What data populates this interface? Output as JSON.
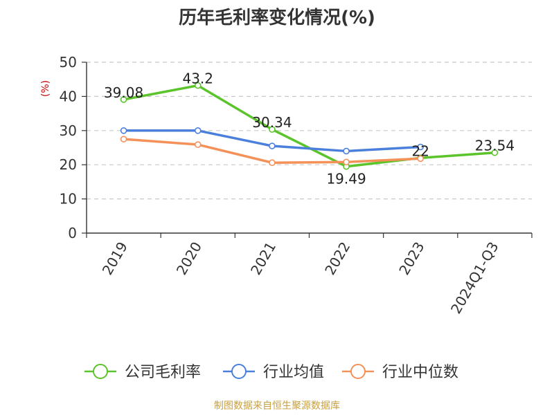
{
  "chart_data": {
    "type": "line",
    "title": "历年毛利率变化情况(%)",
    "ylabel": "(%)",
    "ylim": [
      0,
      50
    ],
    "yticks": [
      0,
      10,
      20,
      30,
      40,
      50
    ],
    "grid": true,
    "legend_position": "bottom",
    "categories": [
      "2019",
      "2020",
      "2021",
      "2022",
      "2023",
      "2024Q1-Q3"
    ],
    "series": [
      {
        "name": "公司毛利率",
        "color": "#5bc42a",
        "values": [
          39.08,
          43.2,
          30.34,
          19.49,
          22,
          23.54
        ],
        "labels": [
          "39.08",
          "43.2",
          "30.34",
          "19.49",
          "22",
          "23.54"
        ]
      },
      {
        "name": "行业均值",
        "color": "#4a7fdc",
        "values": [
          30,
          30,
          25.5,
          24,
          25.2,
          null
        ],
        "labels": []
      },
      {
        "name": "行业中位数",
        "color": "#f39159",
        "values": [
          27.5,
          25.9,
          20.6,
          20.8,
          21.8,
          null
        ],
        "labels": []
      }
    ]
  },
  "footer": {
    "source": "制图数据来自恒生聚源数据库"
  }
}
